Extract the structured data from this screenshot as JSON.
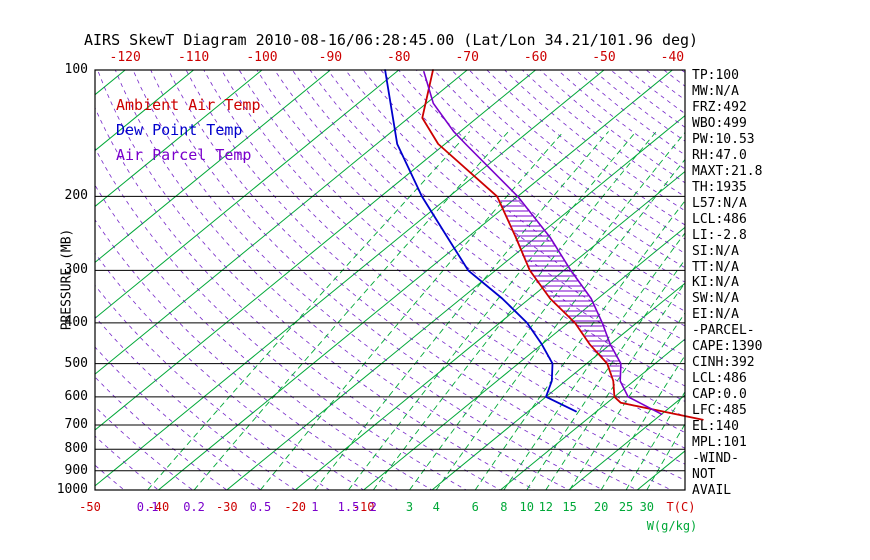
{
  "title": "AIRS SkewT Diagram 2010-08-16/06:28:45.00 (Lat/Lon 34.21/101.96 deg)",
  "legend": {
    "ambient": "Ambient Air Temp",
    "dew": "Dew Point Temp",
    "parcel": "Air Parcel Temp"
  },
  "axes": {
    "pressure_label": "PRESSURE (MB)",
    "temp_unit": "T(C)",
    "mix_unit": "W(g/kg)"
  },
  "stats": [
    "TP:100",
    "MW:N/A",
    "FRZ:492",
    "WBO:499",
    "PW:10.53",
    "RH:47.0",
    "MAXT:21.8",
    "TH:1935",
    "L57:N/A",
    "LCL:486",
    "LI:-2.8",
    "SI:N/A",
    "TT:N/A",
    "KI:N/A",
    "SW:N/A",
    "EI:N/A",
    "-PARCEL-",
    "CAPE:1390",
    "CINH:392",
    "LCL:486",
    "CAP:0.0",
    "LFC:485",
    "EL:140",
    "MPL:101",
    "-WIND-",
    "NOT",
    "AVAIL"
  ],
  "colors": {
    "ambient": "#cc0000",
    "dew": "#0000cc",
    "parcel": "#7a00cc",
    "isotherm": "#00a838",
    "mixing": "#00a838",
    "adiabat": "#5e00c0",
    "axis": "#000000",
    "hatch": "#7a00cc",
    "top_labels": "#cc0000",
    "temp_labels": "#cc0000"
  },
  "chart_data": {
    "type": "line",
    "title": "AIRS SkewT Diagram 2010-08-16/06:28:45.00 (Lat/Lon 34.21/101.96 deg)",
    "x_axis": {
      "label": "T(C)",
      "top_tick_temps_c": [
        -120,
        -110,
        -100,
        -90,
        -80,
        -70,
        -60,
        -50,
        -40
      ],
      "bottom_tick_temps_c": [
        -50,
        -40,
        -30,
        -20,
        -10
      ]
    },
    "y_axis": {
      "label": "PRESSURE (MB)",
      "scale": "log",
      "ticks_mb": [
        100,
        200,
        300,
        400,
        500,
        600,
        700,
        800,
        900,
        1000
      ],
      "range_mb": [
        100,
        1000
      ]
    },
    "isotherms_c": {
      "start": -140,
      "end": 40,
      "step": 10
    },
    "dry_adiabats_c": {
      "start": -50,
      "end": 180,
      "step": 5
    },
    "mixing_ratio_lines_g_kg": [
      {
        "label": "0.1",
        "value": 0.1,
        "color": "#7a00cc"
      },
      {
        "label": "0.2",
        "value": 0.2,
        "color": "#7a00cc"
      },
      {
        "label": "0.5",
        "value": 0.5,
        "color": "#7a00cc"
      },
      {
        "label": "1",
        "value": 1,
        "color": "#7a00cc"
      },
      {
        "label": "1.5",
        "value": 1.5,
        "color": "#7a00cc"
      },
      {
        "label": "2",
        "value": 2,
        "color": "#7a00cc"
      },
      {
        "label": "3",
        "value": 3,
        "color": "#00a838"
      },
      {
        "label": "4",
        "value": 4,
        "color": "#00a838"
      },
      {
        "label": "6",
        "value": 6,
        "color": "#00a838"
      },
      {
        "label": "8",
        "value": 8,
        "color": "#00a838"
      },
      {
        "label": "10",
        "value": 10,
        "color": "#00a838"
      },
      {
        "label": "12",
        "value": 12,
        "color": "#00a838"
      },
      {
        "label": "15",
        "value": 15,
        "color": "#00a838"
      },
      {
        "label": "20",
        "value": 20,
        "color": "#00a838"
      },
      {
        "label": "25",
        "value": 25,
        "color": "#00a838"
      },
      {
        "label": "30",
        "value": 30,
        "color": "#00a838"
      }
    ],
    "series": [
      {
        "name": "Ambient Air Temp",
        "color_key": "ambient",
        "points_p_t": [
          [
            680,
            27
          ],
          [
            620,
            12
          ],
          [
            600,
            10
          ],
          [
            550,
            7
          ],
          [
            500,
            3
          ],
          [
            450,
            -3
          ],
          [
            400,
            -9
          ],
          [
            350,
            -17
          ],
          [
            300,
            -25
          ],
          [
            250,
            -33
          ],
          [
            200,
            -43
          ],
          [
            150,
            -61
          ],
          [
            130,
            -68
          ],
          [
            100,
            -75
          ]
        ]
      },
      {
        "name": "Dew Point Temp",
        "color_key": "dew",
        "points_p_t": [
          [
            650,
            7
          ],
          [
            600,
            0
          ],
          [
            550,
            -2
          ],
          [
            500,
            -5
          ],
          [
            450,
            -10
          ],
          [
            400,
            -16
          ],
          [
            350,
            -24
          ],
          [
            300,
            -34
          ],
          [
            250,
            -43
          ],
          [
            200,
            -54
          ],
          [
            150,
            -67
          ],
          [
            100,
            -82
          ]
        ]
      },
      {
        "name": "Air Parcel Temp",
        "color_key": "parcel",
        "points_p_t": [
          [
            660,
            20
          ],
          [
            600,
            12
          ],
          [
            550,
            8
          ],
          [
            500,
            5
          ],
          [
            450,
            0
          ],
          [
            400,
            -5
          ],
          [
            350,
            -11
          ],
          [
            300,
            -19
          ],
          [
            250,
            -28
          ],
          [
            200,
            -40
          ],
          [
            150,
            -57
          ],
          [
            140,
            -61
          ],
          [
            120,
            -69
          ],
          [
            101,
            -76
          ]
        ]
      }
    ],
    "cape_hatch_between_mb": [
      205,
      548
    ]
  }
}
